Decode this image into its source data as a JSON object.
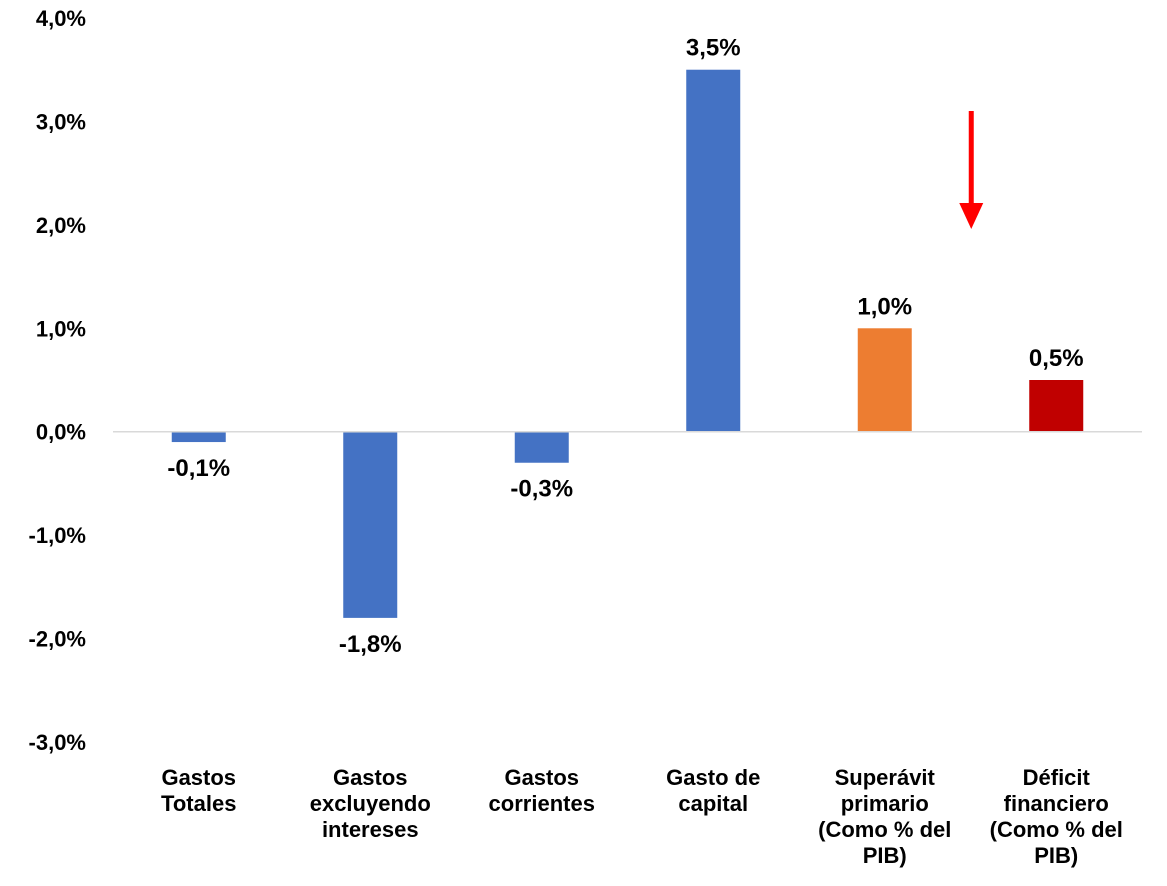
{
  "chart_data": {
    "type": "bar",
    "title": "",
    "xlabel": "",
    "ylabel": "",
    "ylim": [
      -3.0,
      4.0
    ],
    "y_ticks": [
      4.0,
      3.0,
      2.0,
      1.0,
      0.0,
      -1.0,
      -2.0,
      -3.0
    ],
    "y_tick_labels": [
      "4,0%",
      "3,0%",
      "2,0%",
      "1,0%",
      "0,0%",
      "-1,0%",
      "-2,0%",
      "-3,0%"
    ],
    "grid": false,
    "legend": "none",
    "categories": [
      [
        "Gastos",
        "Totales"
      ],
      [
        "Gastos",
        "excluyendo",
        "intereses"
      ],
      [
        "Gastos",
        "corrientes"
      ],
      [
        "Gasto de",
        "capital"
      ],
      [
        "Superávit",
        "primario",
        "(Como % del",
        "PIB)"
      ],
      [
        "Déficit",
        "financiero",
        "(Como % del",
        "PIB)"
      ]
    ],
    "values": [
      -0.1,
      -1.8,
      -0.3,
      3.5,
      1.0,
      0.5
    ],
    "data_labels": [
      "-0,1%",
      "-1,8%",
      "-0,3%",
      "3,5%",
      "1,0%",
      "0,5%"
    ],
    "bar_colors": [
      "#4472C4",
      "#4472C4",
      "#4472C4",
      "#4472C4",
      "#ED7D31",
      "#C00000"
    ],
    "annotations": [
      {
        "type": "arrow",
        "direction": "down",
        "color": "#FF0000",
        "near_category": 5
      }
    ]
  }
}
